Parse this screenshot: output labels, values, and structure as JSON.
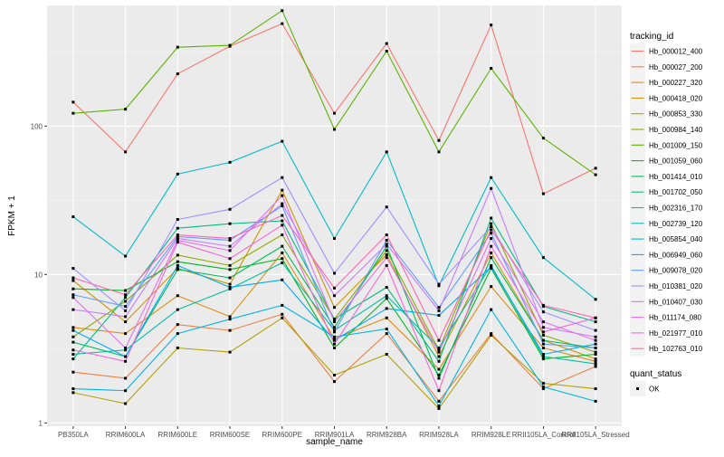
{
  "chart_data": {
    "type": "line",
    "xlabel": "sample_name",
    "ylabel": "FPKM + 1",
    "y_scale": "log10",
    "ylim": [
      0.95,
      650
    ],
    "y_ticks": [
      {
        "value": 1,
        "label": "1"
      },
      {
        "value": 10,
        "label": "10"
      },
      {
        "value": 100,
        "label": "100"
      }
    ],
    "categories": [
      "PB350LA",
      "RRIM600LA",
      "RRIM600LE",
      "RRIM600SE",
      "RRIM600PE",
      "RRIM901LA",
      "RRIM928BA",
      "RRIM928LA",
      "RRIM928LE",
      "RRII105LA_Control",
      "RRII105LA_Stressed"
    ],
    "category_labels": [
      "PB350LA",
      "RRIM600LA",
      "RRIM600LE",
      "RRIM600SE",
      "RRIM600PE",
      "RRIM901LA",
      "RRIM928BA",
      "RRIM928LA",
      "RRIM928LE",
      "RRII105LA_Control",
      "RRII105LA_Stressed"
    ],
    "grid": true,
    "legend_position": "right",
    "legend": {
      "title": "tracking_id",
      "shape_title": "quant_status",
      "shape_entries": [
        "OK"
      ]
    },
    "series": [
      {
        "name": "Hb_000012_400",
        "color": "#F8766D",
        "values": [
          145,
          67,
          225,
          345,
          490,
          122,
          360,
          80,
          480,
          35,
          52
        ]
      },
      {
        "name": "Hb_000027_200",
        "color": "#EE8042",
        "values": [
          2.2,
          2.0,
          4.6,
          4.2,
          5.4,
          1.9,
          4.0,
          1.4,
          4.0,
          1.7,
          2.4
        ]
      },
      {
        "name": "Hb_000227_320",
        "color": "#DF8C15",
        "values": [
          4.4,
          4.0,
          7.2,
          5.2,
          14.0,
          3.7,
          5.1,
          2.3,
          8.3,
          3.2,
          2.6
        ]
      },
      {
        "name": "Hb_000418_020",
        "color": "#CC9600",
        "values": [
          9.1,
          4.8,
          11.0,
          8.6,
          37.0,
          6.0,
          13.6,
          2.8,
          14.0,
          3.6,
          2.7
        ]
      },
      {
        "name": "Hb_000853_330",
        "color": "#B2A000",
        "values": [
          1.6,
          1.35,
          3.2,
          3.0,
          5.1,
          2.1,
          2.9,
          1.25,
          3.9,
          1.85,
          1.7
        ]
      },
      {
        "name": "Hb_000984_140",
        "color": "#91AA00",
        "values": [
          3.8,
          6.6,
          13.5,
          11.5,
          18.5,
          5.0,
          14.5,
          3.1,
          22.0,
          3.9,
          3.0
        ]
      },
      {
        "name": "Hb_001009_150",
        "color": "#5BB300",
        "values": [
          122,
          130,
          340,
          350,
          600,
          95,
          320,
          67,
          245,
          83,
          47
        ]
      },
      {
        "name": "Hb_001059_060",
        "color": "#00B824",
        "values": [
          8.0,
          7.8,
          12.2,
          10.8,
          12.8,
          3.2,
          6.9,
          2.1,
          11.0,
          2.7,
          2.9
        ]
      },
      {
        "name": "Hb_001414_010",
        "color": "#00BC59",
        "values": [
          3.5,
          2.8,
          10.8,
          9.5,
          15.5,
          4.4,
          15.5,
          2.0,
          13.0,
          3.6,
          3.2
        ]
      },
      {
        "name": "Hb_001702_050",
        "color": "#00BF81",
        "values": [
          2.7,
          7.0,
          20.5,
          22.0,
          23.0,
          5.0,
          8.2,
          2.6,
          24.0,
          6.1,
          4.8
        ]
      },
      {
        "name": "Hb_002316_170",
        "color": "#00BFA5",
        "values": [
          2.9,
          3.1,
          5.8,
          8.0,
          12.0,
          4.2,
          7.2,
          3.2,
          11.5,
          2.8,
          2.5
        ]
      },
      {
        "name": "Hb_002739_120",
        "color": "#00BCC6",
        "values": [
          24.5,
          13.3,
          47.5,
          57.0,
          79.0,
          17.5,
          67.0,
          8.4,
          45.0,
          13.0,
          6.8
        ]
      },
      {
        "name": "Hb_005854_040",
        "color": "#00B5E2",
        "values": [
          1.7,
          1.65,
          4.0,
          5.0,
          6.2,
          3.8,
          4.3,
          1.3,
          5.8,
          1.75,
          1.4
        ]
      },
      {
        "name": "Hb_006949_060",
        "color": "#00ABFA",
        "values": [
          4.2,
          2.8,
          11.5,
          8.2,
          9.2,
          3.6,
          5.9,
          5.3,
          11.3,
          2.9,
          3.4
        ]
      },
      {
        "name": "Hb_009078_020",
        "color": "#619CFF",
        "values": [
          7.3,
          6.1,
          18.0,
          17.0,
          29.0,
          4.1,
          17.0,
          6.0,
          19.0,
          3.4,
          3.2
        ]
      },
      {
        "name": "Hb_010381_020",
        "color": "#9E8FFF",
        "values": [
          11.0,
          5.7,
          23.5,
          27.5,
          45.0,
          10.2,
          28.5,
          8.6,
          21.0,
          5.6,
          4.2
        ]
      },
      {
        "name": "Hb_010407_030",
        "color": "#C77CFF",
        "values": [
          5.8,
          5.2,
          17.5,
          15.5,
          30.0,
          7.2,
          16.0,
          5.7,
          38.0,
          4.4,
          3.8
        ]
      },
      {
        "name": "Hb_011174_080",
        "color": "#E46FF1",
        "values": [
          7.0,
          3.2,
          17.0,
          14.5,
          34.0,
          4.8,
          13.0,
          3.0,
          17.5,
          4.8,
          3.6
        ]
      },
      {
        "name": "Hb_021977_010",
        "color": "#F566DA",
        "values": [
          3.1,
          2.6,
          16.5,
          12.8,
          21.5,
          3.4,
          11.5,
          1.65,
          15.5,
          4.1,
          5.1
        ]
      },
      {
        "name": "Hb_102763_010",
        "color": "#FF65B0",
        "values": [
          9.5,
          7.3,
          18.5,
          17.5,
          25.0,
          8.1,
          18.5,
          3.6,
          20.0,
          6.2,
          5.1
        ]
      }
    ]
  }
}
